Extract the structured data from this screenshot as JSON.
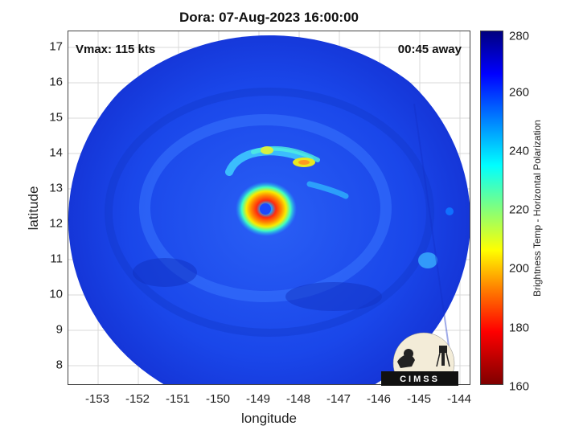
{
  "title": "Dora: 07-Aug-2023 16:00:00",
  "annotations": {
    "vmax": "Vmax: 115 kts",
    "eta": "00:45 away"
  },
  "map": {
    "xlabel": "longitude",
    "ylabel": "latitude",
    "xticks": [
      "-153",
      "-152",
      "-151",
      "-150",
      "-149",
      "-148",
      "-147",
      "-146",
      "-145",
      "-144"
    ],
    "yticks": [
      "17",
      "16",
      "15",
      "14",
      "13",
      "12",
      "11",
      "10",
      "9",
      "8"
    ],
    "xlim": [
      -153.7,
      -143.7
    ],
    "ylim": [
      7.4,
      17.4
    ],
    "grid": true,
    "eye_center": [
      -148.7,
      12.4
    ]
  },
  "colorbar": {
    "label": "Brightness Temp - Horizontal Polarization",
    "ticks": [
      "280",
      "260",
      "240",
      "220",
      "200",
      "180",
      "160"
    ],
    "range": [
      160,
      280
    ],
    "colormap": "jet"
  },
  "logo": {
    "text": "CIMSS"
  },
  "colors": {
    "background_blue": "#1a46e8",
    "eye_red": "#ff3010",
    "eye_yellow": "#f8e400"
  }
}
